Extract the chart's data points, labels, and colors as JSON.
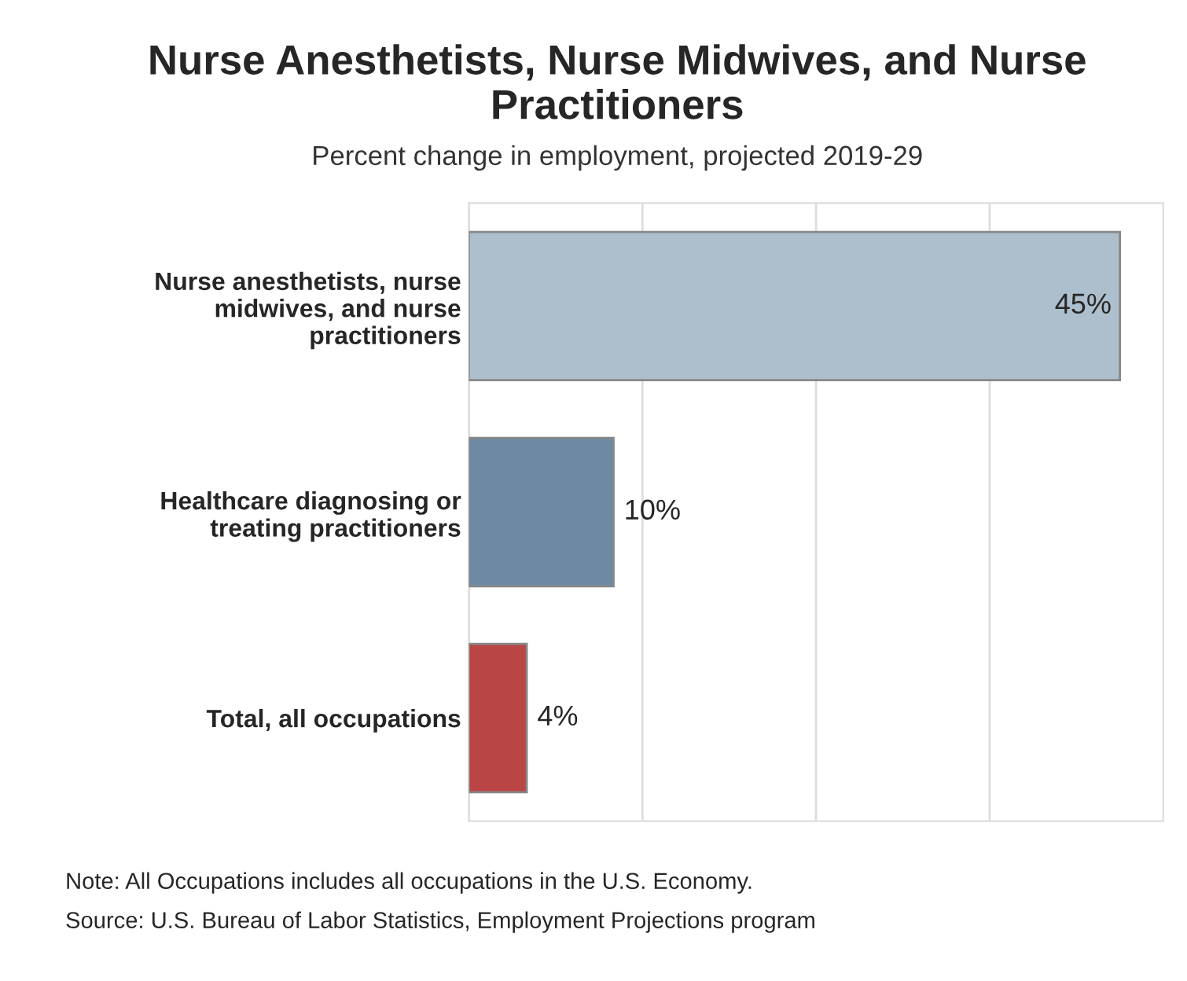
{
  "chart_data": {
    "type": "bar",
    "orientation": "horizontal",
    "title": "Nurse Anesthetists, Nurse Midwives, and Nurse Practitioners",
    "subtitle": "Percent change in employment, projected 2019-29",
    "categories": [
      "Nurse anesthetists, nurse midwives, and nurse practitioners",
      "Healthcare diagnosing or treating practitioners",
      "Total, all occupations"
    ],
    "values": [
      45,
      10,
      4
    ],
    "colors": [
      "#adbfcd",
      "#6e8aa3",
      "#b94545"
    ],
    "value_labels": [
      "45%",
      "10%",
      "4%"
    ],
    "xlim": [
      0,
      48
    ],
    "xticks": [
      {
        "value": 0,
        "label": null
      },
      {
        "value": 12,
        "label": null
      },
      {
        "value": 24,
        "label": null
      },
      {
        "value": 36,
        "label": null
      }
    ],
    "grid": "x",
    "tick_labels": "y",
    "annotations": [
      "Note: All Occupations includes all occupations in the U.S. Economy.",
      "Source: U.S. Bureau of Labor Statistics, Employment Projections program"
    ]
  }
}
